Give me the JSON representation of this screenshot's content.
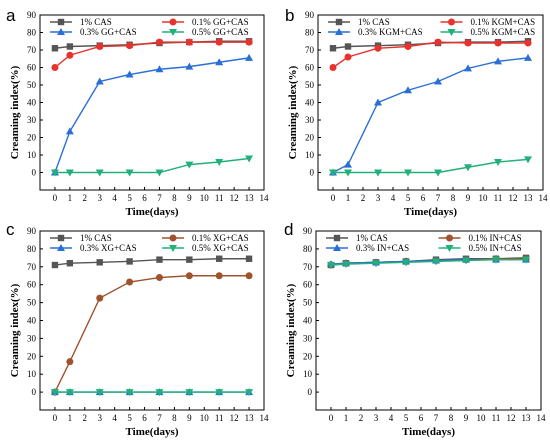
{
  "chart_data": [
    {
      "type": "line",
      "panel_label": "a",
      "xlabel": "Time(days)",
      "ylabel": "Creaming index(%)",
      "xlim": [
        -1,
        14
      ],
      "ylim": [
        -10,
        90
      ],
      "xticks": [
        0,
        1,
        2,
        3,
        4,
        5,
        6,
        7,
        8,
        9,
        10,
        11,
        12,
        13,
        14
      ],
      "yticks": [
        0,
        10,
        20,
        30,
        40,
        50,
        60,
        70,
        80,
        90
      ],
      "legend": "top, two columns",
      "x": [
        0,
        1,
        3,
        5,
        7,
        9,
        11,
        13
      ],
      "series": [
        {
          "name": "1% CAS",
          "color": "#555555",
          "marker": "square",
          "values": [
            71,
            72,
            72.5,
            73,
            74,
            74.5,
            75,
            75
          ]
        },
        {
          "name": "0.1% GG+CAS",
          "color": "#e8322d",
          "marker": "circle",
          "values": [
            60,
            67,
            72,
            72.5,
            74.5,
            74.5,
            74.5,
            74.5
          ]
        },
        {
          "name": "0.3% GG+CAS",
          "color": "#2a6fd6",
          "marker": "triangle-up",
          "values": [
            0,
            23.5,
            52,
            56,
            59,
            60.5,
            63,
            65.5
          ]
        },
        {
          "name": "0.5% GG+CAS",
          "color": "#22b07a",
          "marker": "triangle-down",
          "values": [
            0,
            0,
            0,
            0,
            0,
            4.5,
            6,
            8
          ]
        }
      ]
    },
    {
      "type": "line",
      "panel_label": "b",
      "xlabel": "Time(days)",
      "ylabel": "Creaming index(%)",
      "xlim": [
        -1,
        14
      ],
      "ylim": [
        -10,
        90
      ],
      "xticks": [
        0,
        1,
        2,
        3,
        4,
        5,
        6,
        7,
        8,
        9,
        10,
        11,
        12,
        13,
        14
      ],
      "yticks": [
        0,
        10,
        20,
        30,
        40,
        50,
        60,
        70,
        80,
        90
      ],
      "legend": "top, two columns",
      "x": [
        0,
        1,
        3,
        5,
        7,
        9,
        11,
        13
      ],
      "series": [
        {
          "name": "1% CAS",
          "color": "#555555",
          "marker": "square",
          "values": [
            71,
            72,
            72.5,
            73,
            74,
            74.5,
            74.5,
            75
          ]
        },
        {
          "name": "0.1% KGM+CAS",
          "color": "#e8322d",
          "marker": "circle",
          "values": [
            60,
            66,
            71,
            72,
            74.5,
            74,
            74,
            74
          ]
        },
        {
          "name": "0.3% KGM+CAS",
          "color": "#2a6fd6",
          "marker": "triangle-up",
          "values": [
            0,
            4.5,
            40,
            47,
            52,
            59.5,
            63.5,
            65.5
          ]
        },
        {
          "name": "0.5% KGM+CAS",
          "color": "#22b07a",
          "marker": "triangle-down",
          "values": [
            0,
            0,
            0,
            0,
            0,
            3,
            6,
            7.5
          ]
        }
      ]
    },
    {
      "type": "line",
      "panel_label": "c",
      "xlabel": "Time(days)",
      "ylabel": "Creaming index(%)",
      "xlim": [
        -1,
        14
      ],
      "ylim": [
        -10,
        90
      ],
      "xticks": [
        0,
        1,
        2,
        3,
        4,
        5,
        6,
        7,
        8,
        9,
        10,
        11,
        12,
        13,
        14
      ],
      "yticks": [
        0,
        10,
        20,
        30,
        40,
        50,
        60,
        70,
        80,
        90
      ],
      "legend": "top, two columns",
      "x": [
        0,
        1,
        3,
        5,
        7,
        9,
        11,
        13
      ],
      "series": [
        {
          "name": "1% CAS",
          "color": "#555555",
          "marker": "square",
          "values": [
            71,
            72,
            72.5,
            73,
            74,
            74,
            74.5,
            74.5
          ]
        },
        {
          "name": "0.1% XG+CAS",
          "color": "#a0522d",
          "marker": "circle",
          "values": [
            0,
            17,
            52.5,
            61.5,
            64,
            65,
            65,
            65
          ]
        },
        {
          "name": "0.3% XG+CAS",
          "color": "#2a6fd6",
          "marker": "triangle-up",
          "values": [
            0,
            0,
            0,
            0,
            0,
            0,
            0,
            0
          ]
        },
        {
          "name": "0.5% XG+CAS",
          "color": "#22b07a",
          "marker": "triangle-down",
          "values": [
            0,
            0,
            0,
            0,
            0,
            0,
            0,
            0
          ]
        }
      ]
    },
    {
      "type": "line",
      "panel_label": "d",
      "xlabel": "Time(days)",
      "ylabel": "Creaming index(%)",
      "xlim": [
        -1,
        14
      ],
      "ylim": [
        -10,
        90
      ],
      "xticks": [
        0,
        1,
        2,
        3,
        4,
        5,
        6,
        7,
        8,
        9,
        10,
        11,
        12,
        13,
        14
      ],
      "yticks": [
        0,
        10,
        20,
        30,
        40,
        50,
        60,
        70,
        80,
        90
      ],
      "legend": "top, two columns",
      "x": [
        0,
        1,
        3,
        5,
        7,
        9,
        11,
        13
      ],
      "series": [
        {
          "name": "1% CAS",
          "color": "#555555",
          "marker": "square",
          "values": [
            71,
            72,
            72.5,
            73,
            74,
            74.5,
            74.5,
            75
          ]
        },
        {
          "name": "0.1% IN+CAS",
          "color": "#a0522d",
          "marker": "circle",
          "values": [
            71,
            72,
            72.5,
            73,
            73.5,
            74,
            74.5,
            74.5
          ]
        },
        {
          "name": "0.3% IN+CAS",
          "color": "#2a6fd6",
          "marker": "triangle-up",
          "values": [
            71.5,
            72,
            72.5,
            73,
            73.5,
            74,
            74,
            74
          ]
        },
        {
          "name": "0.5% IN+CAS",
          "color": "#22b07a",
          "marker": "triangle-down",
          "values": [
            71,
            71.5,
            72,
            72.5,
            73,
            73.5,
            74,
            74
          ]
        }
      ]
    }
  ]
}
